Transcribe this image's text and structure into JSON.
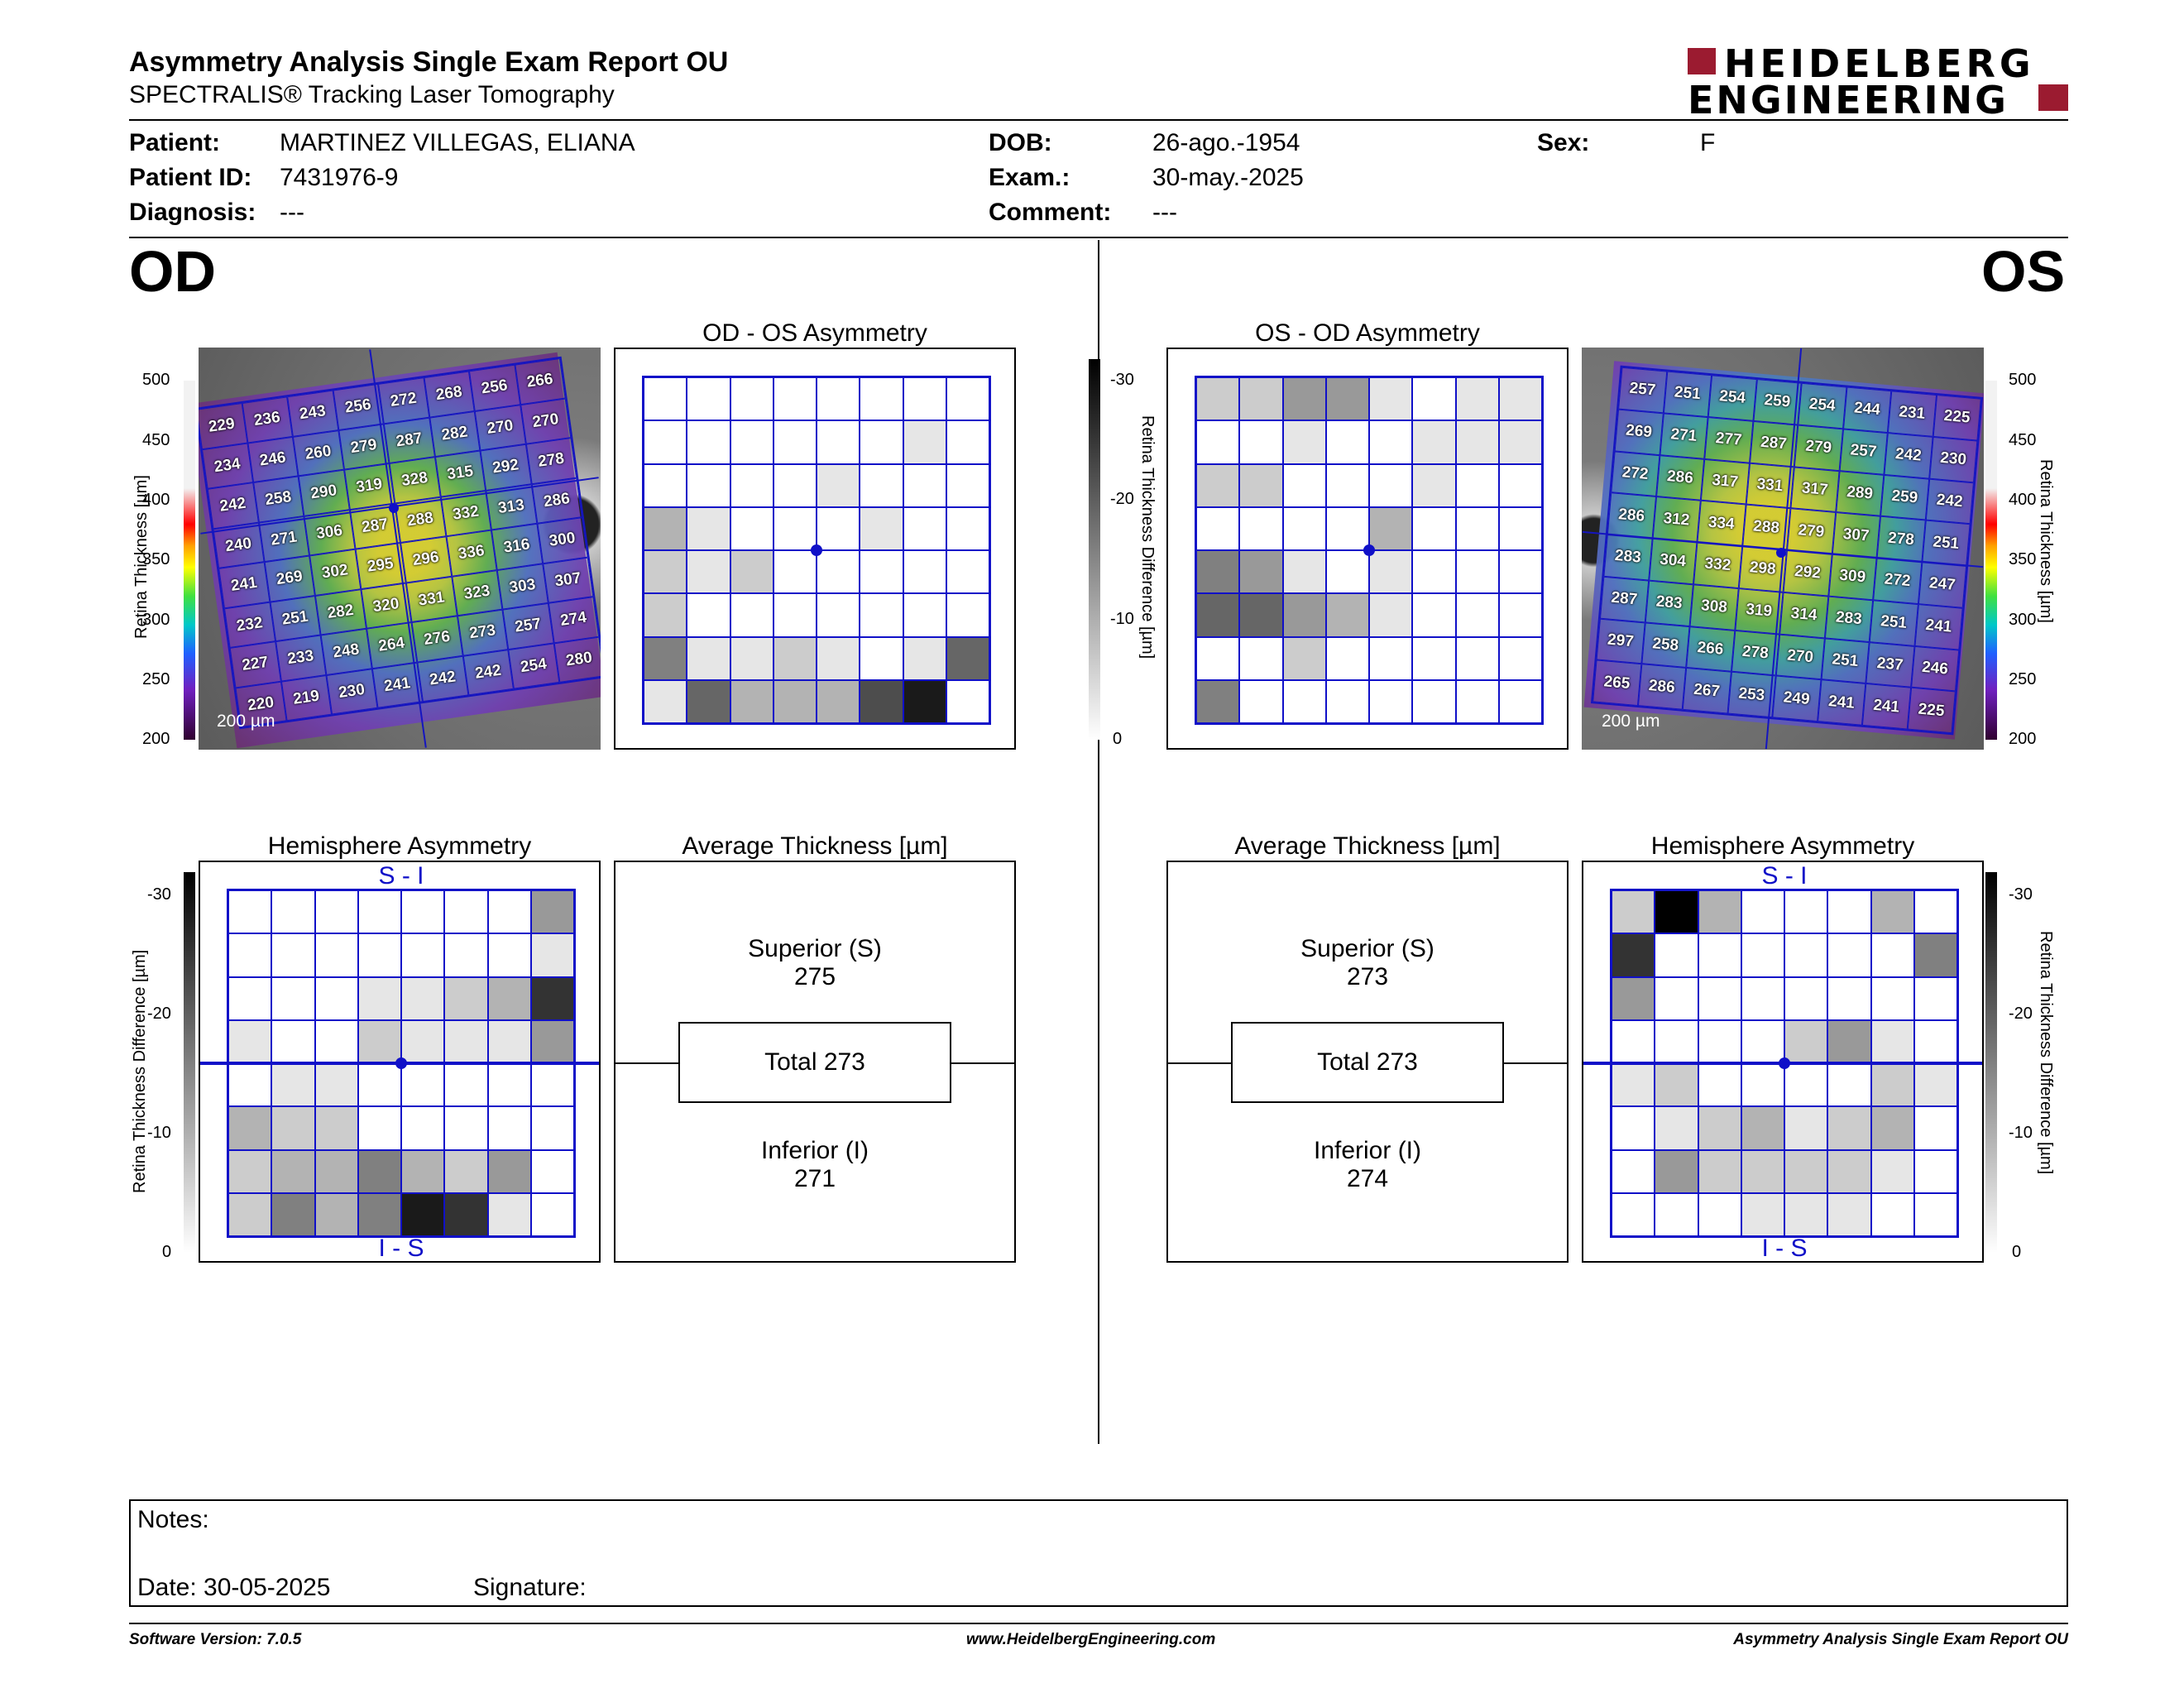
{
  "report": {
    "title": "Asymmetry Analysis Single Exam Report OU",
    "subtitle": "SPECTRALIS® Tracking Laser Tomography",
    "logo_line1": "HEIDELBERG",
    "logo_line2": "ENGINEERING"
  },
  "patient": {
    "patient_label": "Patient:",
    "patient_value": "MARTINEZ VILLEGAS, ELIANA",
    "id_label": "Patient ID:",
    "id_value": "7431976-9",
    "diagnosis_label": "Diagnosis:",
    "diagnosis_value": "---",
    "dob_label": "DOB:",
    "dob_value": "26-ago.-1954",
    "exam_label": "Exam.:",
    "exam_value": "30-may.-2025",
    "comment_label": "Comment:",
    "comment_value": "---",
    "sex_label": "Sex:",
    "sex_value": "F"
  },
  "eyes": {
    "od": "OD",
    "os": "OS"
  },
  "thickness_scale": {
    "label": "Retina  Thickness [µm]",
    "ticks": [
      "500",
      "450",
      "400",
      "350",
      "300",
      "250",
      "200"
    ],
    "scalebar": "200 µm"
  },
  "diff_scale": {
    "label": "Retina Thickness Difference [µm]",
    "ticks": [
      "-30",
      "-20",
      "-10",
      "0"
    ]
  },
  "od": {
    "thickness_grid": [
      [
        "229",
        "236",
        "243",
        "256",
        "272",
        "268",
        "256",
        "266"
      ],
      [
        "234",
        "246",
        "260",
        "279",
        "287",
        "282",
        "270",
        "270"
      ],
      [
        "242",
        "258",
        "290",
        "319",
        "328",
        "315",
        "292",
        "278"
      ],
      [
        "240",
        "271",
        "306",
        "287",
        "288",
        "332",
        "313",
        "286"
      ],
      [
        "241",
        "269",
        "302",
        "295",
        "296",
        "336",
        "316",
        "300"
      ],
      [
        "232",
        "251",
        "282",
        "320",
        "331",
        "323",
        "303",
        "307"
      ],
      [
        "227",
        "233",
        "248",
        "264",
        "276",
        "273",
        "257",
        "274"
      ],
      [
        "220",
        "219",
        "230",
        "241",
        "242",
        "242",
        "254",
        "280"
      ]
    ],
    "asymmetry_title": "OD - OS Asymmetry",
    "asymmetry_grid": [
      [
        0,
        0,
        0,
        0,
        0,
        0,
        0,
        0
      ],
      [
        0,
        0,
        0,
        0,
        0,
        0,
        1,
        0
      ],
      [
        0,
        0,
        0,
        0,
        1,
        0,
        0,
        0
      ],
      [
        3,
        1,
        0,
        0,
        0,
        1,
        0,
        0
      ],
      [
        2,
        1,
        2,
        0,
        0,
        0,
        0,
        0
      ],
      [
        2,
        0,
        0,
        0,
        0,
        0,
        0,
        0
      ],
      [
        5,
        1,
        1,
        2,
        1,
        0,
        1,
        6
      ],
      [
        1,
        6,
        3,
        3,
        3,
        7,
        9,
        0
      ]
    ],
    "hemisphere_title": "Hemisphere Asymmetry",
    "hemisphere_top": "S - I",
    "hemisphere_bottom": "I - S",
    "hemisphere_grid": [
      [
        0,
        0,
        0,
        0,
        0,
        0,
        0,
        4
      ],
      [
        0,
        0,
        0,
        0,
        0,
        0,
        0,
        1
      ],
      [
        0,
        0,
        0,
        1,
        1,
        2,
        3,
        8
      ],
      [
        1,
        0,
        0,
        2,
        1,
        1,
        1,
        4
      ],
      [
        0,
        1,
        1,
        0,
        0,
        0,
        0,
        0
      ],
      [
        3,
        2,
        2,
        0,
        0,
        0,
        0,
        0
      ],
      [
        2,
        3,
        3,
        5,
        3,
        2,
        4,
        0
      ],
      [
        2,
        5,
        3,
        5,
        9,
        8,
        1,
        0
      ]
    ],
    "avg_title": "Average Thickness [µm]",
    "superior_label": "Superior (S)",
    "superior_value": "275",
    "total_label": "Total 273",
    "inferior_label": "Inferior (I)",
    "inferior_value": "271"
  },
  "os": {
    "thickness_grid": [
      [
        "257",
        "251",
        "254",
        "259",
        "254",
        "244",
        "231",
        "225"
      ],
      [
        "269",
        "271",
        "277",
        "287",
        "279",
        "257",
        "242",
        "230"
      ],
      [
        "272",
        "286",
        "317",
        "331",
        "317",
        "289",
        "259",
        "242"
      ],
      [
        "286",
        "312",
        "334",
        "288",
        "279",
        "307",
        "278",
        "251"
      ],
      [
        "283",
        "304",
        "332",
        "298",
        "292",
        "309",
        "272",
        "247"
      ],
      [
        "287",
        "283",
        "308",
        "319",
        "314",
        "283",
        "251",
        "241"
      ],
      [
        "297",
        "258",
        "266",
        "278",
        "270",
        "251",
        "237",
        "246"
      ],
      [
        "265",
        "286",
        "267",
        "253",
        "249",
        "241",
        "241",
        "225"
      ]
    ],
    "asymmetry_title": "OS - OD Asymmetry",
    "asymmetry_grid": [
      [
        2,
        2,
        4,
        4,
        1,
        0,
        1,
        1
      ],
      [
        0,
        0,
        1,
        0,
        0,
        1,
        1,
        1
      ],
      [
        2,
        2,
        0,
        0,
        0,
        1,
        0,
        0
      ],
      [
        0,
        0,
        0,
        0,
        3,
        0,
        0,
        0
      ],
      [
        5,
        4,
        1,
        0,
        1,
        0,
        0,
        0
      ],
      [
        6,
        6,
        4,
        3,
        1,
        0,
        0,
        0
      ],
      [
        0,
        0,
        2,
        0,
        0,
        0,
        0,
        0
      ],
      [
        5,
        0,
        0,
        0,
        0,
        0,
        0,
        0
      ]
    ],
    "hemisphere_title": "Hemisphere Asymmetry",
    "hemisphere_top": "S - I",
    "hemisphere_bottom": "I - S",
    "hemisphere_grid": [
      [
        2,
        10,
        3,
        0,
        0,
        0,
        3,
        0
      ],
      [
        8,
        0,
        0,
        0,
        0,
        0,
        0,
        5
      ],
      [
        4,
        0,
        0,
        0,
        0,
        0,
        0,
        0
      ],
      [
        0,
        0,
        0,
        0,
        2,
        4,
        1,
        0
      ],
      [
        1,
        2,
        0,
        0,
        0,
        0,
        2,
        1
      ],
      [
        0,
        1,
        2,
        3,
        1,
        2,
        3,
        0
      ],
      [
        0,
        4,
        2,
        2,
        2,
        2,
        1,
        0
      ],
      [
        0,
        0,
        0,
        1,
        1,
        1,
        0,
        0
      ]
    ],
    "avg_title": "Average Thickness [µm]",
    "superior_label": "Superior (S)",
    "superior_value": "273",
    "total_label": "Total 273",
    "inferior_label": "Inferior (I)",
    "inferior_value": "274"
  },
  "notes": {
    "notes_label": "Notes:",
    "date_label": "Date: 30-05-2025",
    "signature_label": "Signature:"
  },
  "footer": {
    "version": "Software Version: 7.0.5",
    "website": "www.HeidelbergEngineering.com",
    "report_name": "Asymmetry Analysis Single Exam Report OU"
  },
  "colors": {
    "grid_blue": "#1010c8",
    "logo_red": "#9b1b30"
  }
}
